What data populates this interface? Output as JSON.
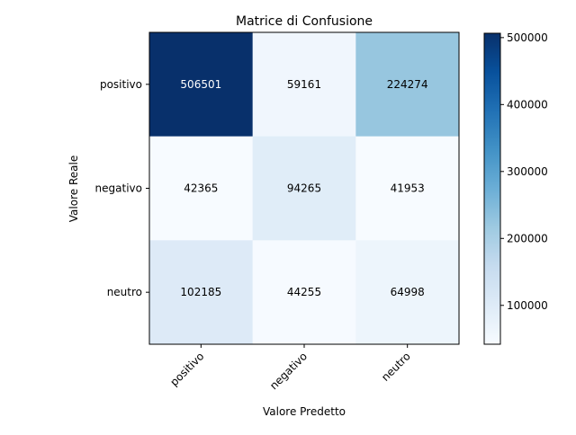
{
  "chart_data": {
    "type": "heatmap",
    "title": "Matrice di Confusione",
    "xlabel": "Valore Predetto",
    "ylabel": "Valore Reale",
    "x_categories": [
      "positivo",
      "negativo",
      "neutro"
    ],
    "y_categories": [
      "positivo",
      "negativo",
      "neutro"
    ],
    "values": [
      [
        506501,
        59161,
        224274
      ],
      [
        42365,
        94265,
        41953
      ],
      [
        102185,
        44255,
        64998
      ]
    ],
    "colormap": "Blues",
    "colorbar": {
      "min": 41953,
      "max": 506501,
      "ticks": [
        100000,
        200000,
        300000,
        400000,
        500000
      ],
      "tick_labels": [
        "100000",
        "200000",
        "300000",
        "400000",
        "500000"
      ]
    },
    "threshold_note_color": {
      "dark_text": "#ffffff",
      "light_text": "#000000"
    }
  }
}
